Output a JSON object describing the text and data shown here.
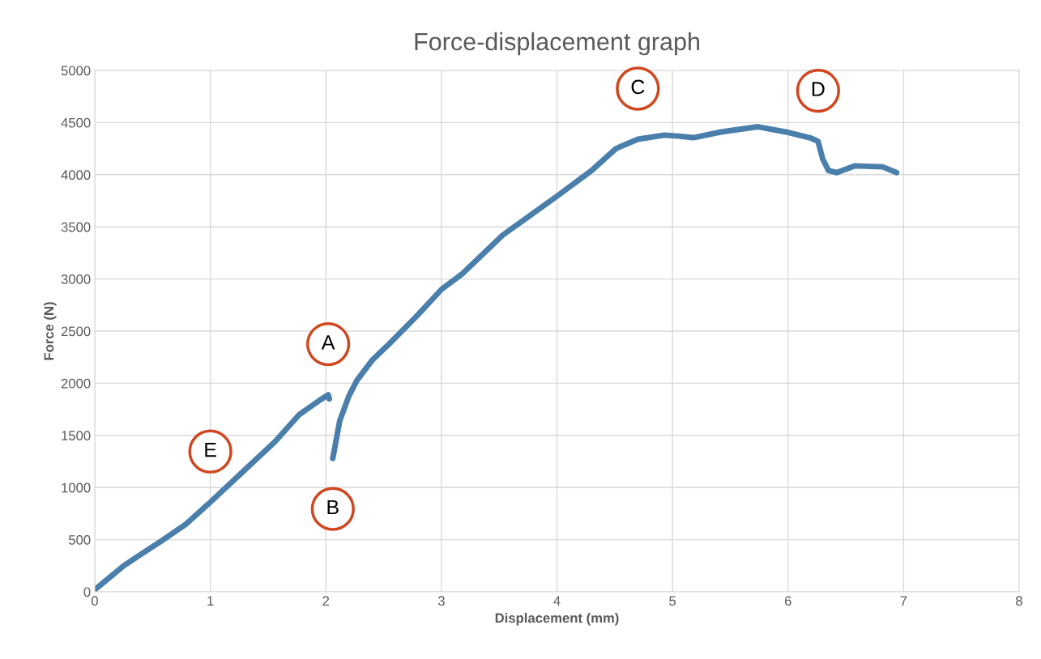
{
  "chart_data": {
    "type": "line",
    "title": "Force-displacement graph",
    "xlabel": "Displacement (mm)",
    "ylabel": "Force (N)",
    "xlim": [
      0,
      8
    ],
    "xticks": [
      0,
      1,
      2,
      3,
      4,
      5,
      6,
      7,
      8
    ],
    "ylim": [
      0,
      5000
    ],
    "yticks": [
      0,
      500,
      1000,
      1500,
      2000,
      2500,
      3000,
      3500,
      4000,
      4500,
      5000
    ],
    "grid": true,
    "marker": "none",
    "line_style": "solid",
    "series": [
      {
        "color": "#4a7fab",
        "x": [
          0,
          0.12,
          0.25,
          0.4,
          0.58,
          0.79,
          1.0,
          1.28,
          1.56,
          1.77,
          1.95,
          2.02,
          2.03
        ],
        "values": [
          20,
          130,
          250,
          360,
          490,
          650,
          860,
          1150,
          1440,
          1700,
          1840,
          1890,
          1850
        ]
      },
      {
        "color": "#4a7fab",
        "x": [
          2.06,
          2.12,
          2.2,
          2.27,
          2.4,
          2.55,
          2.8,
          3.0,
          3.18,
          3.53,
          4.02,
          4.3,
          4.51,
          4.7,
          4.93,
          5.05,
          5.18,
          5.42,
          5.74,
          5.98,
          6.2,
          6.26,
          6.3,
          6.35,
          6.42,
          6.58,
          6.82,
          6.94
        ],
        "values": [
          1280,
          1640,
          1880,
          2030,
          2220,
          2380,
          2660,
          2900,
          3050,
          3420,
          3810,
          4040,
          4250,
          4340,
          4380,
          4370,
          4355,
          4410,
          4460,
          4410,
          4350,
          4320,
          4150,
          4040,
          4020,
          4085,
          4075,
          4020
        ]
      }
    ],
    "annotations": [
      {
        "text": "A",
        "x": 2.02,
        "y": 1890
      },
      {
        "text": "B",
        "x": 2.06,
        "y": 1280
      },
      {
        "text": "C",
        "x": 4.7,
        "y": 4340
      },
      {
        "text": "D",
        "x": 6.26,
        "y": 4320
      },
      {
        "text": "E",
        "x": 1.0,
        "y": 860
      }
    ]
  }
}
